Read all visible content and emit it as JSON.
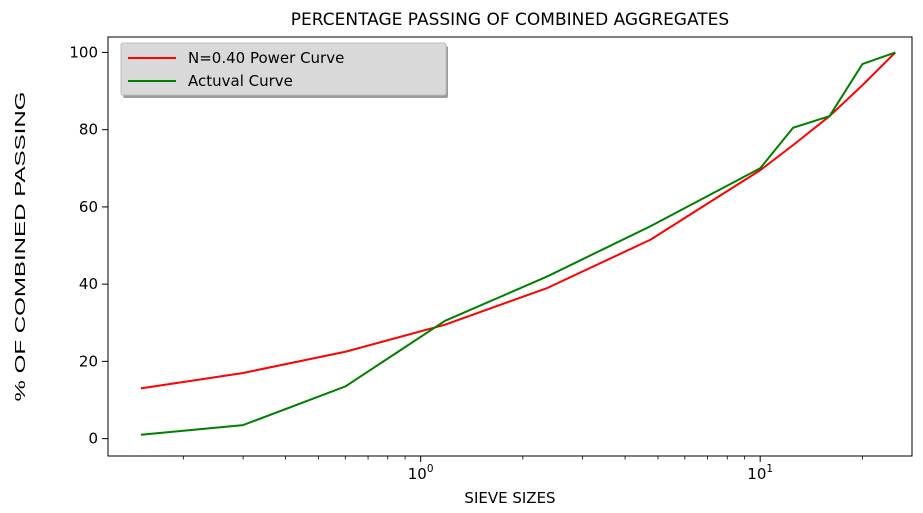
{
  "chart_data": {
    "type": "line",
    "title": "PERCENTAGE PASSING OF COMBINED AGGREGATES",
    "xlabel": "SIEVE SIZES",
    "ylabel": "% OF COMBINED PASSING",
    "xscale": "log",
    "xlim": [
      0.12,
      28
    ],
    "ylim": [
      -4.5,
      104
    ],
    "yticks": [
      0,
      20,
      40,
      60,
      80,
      100
    ],
    "xticks": [
      {
        "value": 1,
        "base": "10",
        "exp": "0"
      },
      {
        "value": 10,
        "base": "10",
        "exp": "1"
      }
    ],
    "grid": false,
    "legend_position": "top-left",
    "series": [
      {
        "name": "N=0.40 Power Curve",
        "color": "#ff0000",
        "x": [
          0.15,
          0.3,
          0.6,
          1.18,
          2.36,
          4.75,
          10,
          12.5,
          16,
          20,
          25
        ],
        "y": [
          13,
          17,
          22.5,
          29.5,
          39,
          51.5,
          69.5,
          76,
          83.5,
          91.5,
          100
        ]
      },
      {
        "name": "Actuval Curve",
        "color": "#008000",
        "x": [
          0.15,
          0.3,
          0.6,
          1.18,
          2.36,
          4.75,
          10,
          12.5,
          16,
          20,
          25
        ],
        "y": [
          1,
          3.5,
          13.5,
          30.5,
          42,
          55,
          70,
          80.5,
          83.5,
          97,
          100
        ]
      }
    ]
  }
}
